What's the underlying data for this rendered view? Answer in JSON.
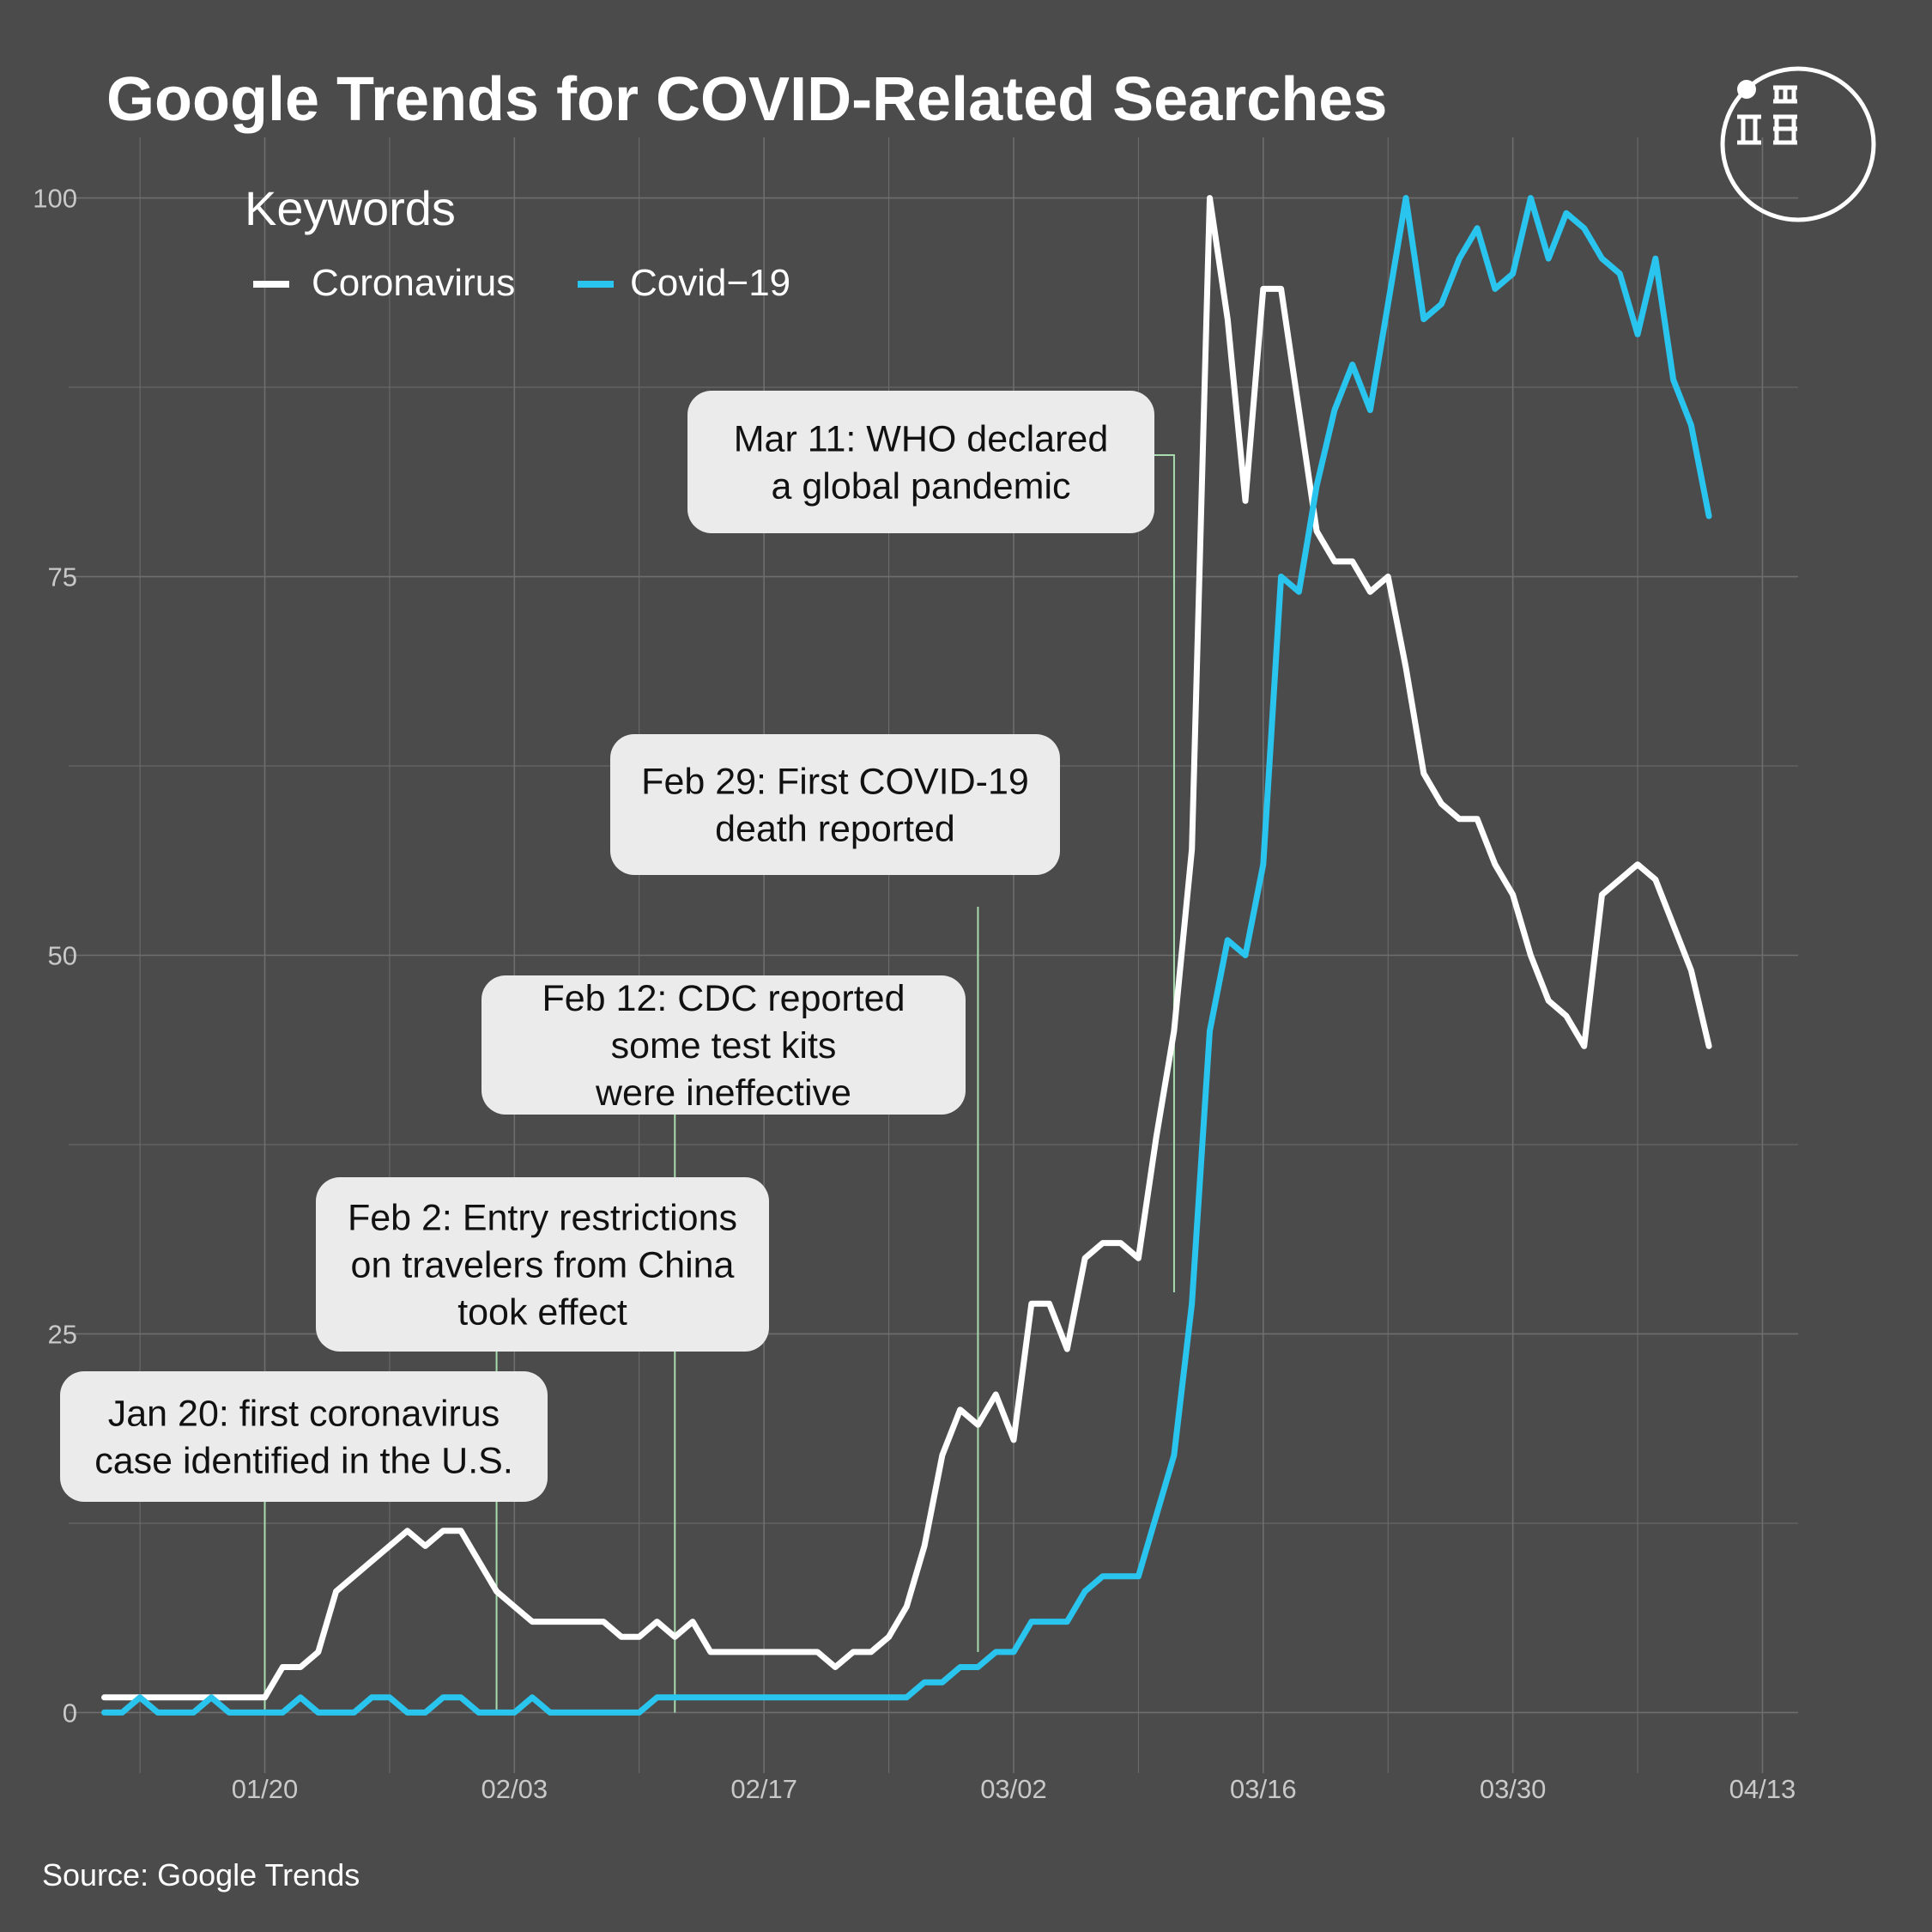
{
  "title": "Google Trends for COVID-Related Searches",
  "legend": {
    "title": "Keywords",
    "items": [
      {
        "label": "Coronavirus",
        "color": "#ffffff"
      },
      {
        "label": "Covid−19",
        "color": "#29c5ee"
      }
    ]
  },
  "source": "Source: Google Trends",
  "logo_icon": "circle-monogram-logo",
  "colors": {
    "background": "#4b4b4b",
    "grid": "#6e6e6e",
    "leader": "#a8dcae",
    "annotation_box": "#ebebeb"
  },
  "chart_data": {
    "type": "line",
    "x_type": "date",
    "x_start": "2020-01-11",
    "x_end": "2020-04-10",
    "xlim": [
      "2020-01-09",
      "2020-04-15"
    ],
    "xticks": [
      "2020-01-20",
      "2020-02-03",
      "2020-02-17",
      "2020-03-02",
      "2020-03-16",
      "2020-03-30",
      "2020-04-13"
    ],
    "xtick_labels": [
      "01/20",
      "02/03",
      "02/17",
      "03/02",
      "03/16",
      "03/30",
      "04/13"
    ],
    "ylim": [
      -4,
      104
    ],
    "yticks": [
      0,
      25,
      50,
      75,
      100
    ],
    "ytick_labels": [
      "0",
      "25",
      "50",
      "75",
      "100"
    ],
    "grid": true,
    "legend_position": "top-left",
    "series": [
      {
        "name": "Coronavirus",
        "color": "#ffffff",
        "values": [
          1,
          1,
          1,
          1,
          1,
          1,
          1,
          1,
          1,
          1,
          3,
          3,
          4,
          8,
          9,
          10,
          11,
          12,
          11,
          12,
          12,
          10,
          8,
          7,
          6,
          6,
          6,
          6,
          6,
          5,
          5,
          6,
          5,
          6,
          4,
          4,
          4,
          4,
          4,
          4,
          4,
          3,
          4,
          4,
          5,
          7,
          11,
          17,
          20,
          19,
          21,
          18,
          27,
          27,
          24,
          30,
          31,
          31,
          30,
          38,
          45,
          57,
          100,
          92,
          80,
          94,
          94,
          86,
          78,
          76,
          76,
          74,
          75,
          69,
          62,
          60,
          59,
          59,
          56,
          54,
          50,
          47,
          46,
          44,
          54,
          55,
          56,
          55,
          52,
          49,
          44
        ]
      },
      {
        "name": "Covid−19",
        "color": "#29c5ee",
        "values": [
          0,
          0,
          1,
          0,
          0,
          0,
          1,
          0,
          0,
          0,
          0,
          1,
          0,
          0,
          0,
          1,
          1,
          0,
          0,
          1,
          1,
          0,
          0,
          0,
          1,
          0,
          0,
          0,
          0,
          0,
          0,
          1,
          1,
          1,
          1,
          1,
          1,
          1,
          1,
          1,
          1,
          1,
          1,
          1,
          1,
          1,
          2,
          2,
          3,
          3,
          4,
          4,
          6,
          6,
          6,
          8,
          9,
          9,
          9,
          13,
          17,
          27,
          45,
          51,
          50,
          56,
          75,
          74,
          81,
          86,
          89,
          86,
          93,
          100,
          92,
          93,
          96,
          98,
          94,
          95,
          100,
          96,
          99,
          98,
          96,
          95,
          91,
          96,
          88,
          85,
          79
        ]
      }
    ],
    "annotations": [
      {
        "lines": [
          "Jan 20: first coronavirus",
          "case identified in the U.S."
        ],
        "date": "2020-01-20"
      },
      {
        "lines": [
          "Feb 2:  Entry restrictions",
          "on travelers from China",
          "took effect"
        ],
        "date": "2020-02-02"
      },
      {
        "lines": [
          "Feb 12: CDC reported",
          "some test kits",
          "were ineffective"
        ],
        "date": "2020-02-12"
      },
      {
        "lines": [
          "Feb 29: First COVID-19",
          "death reported"
        ],
        "date": "2020-02-29"
      },
      {
        "lines": [
          "Mar 11: WHO declared",
          "a global pandemic"
        ],
        "date": "2020-03-11"
      }
    ]
  }
}
